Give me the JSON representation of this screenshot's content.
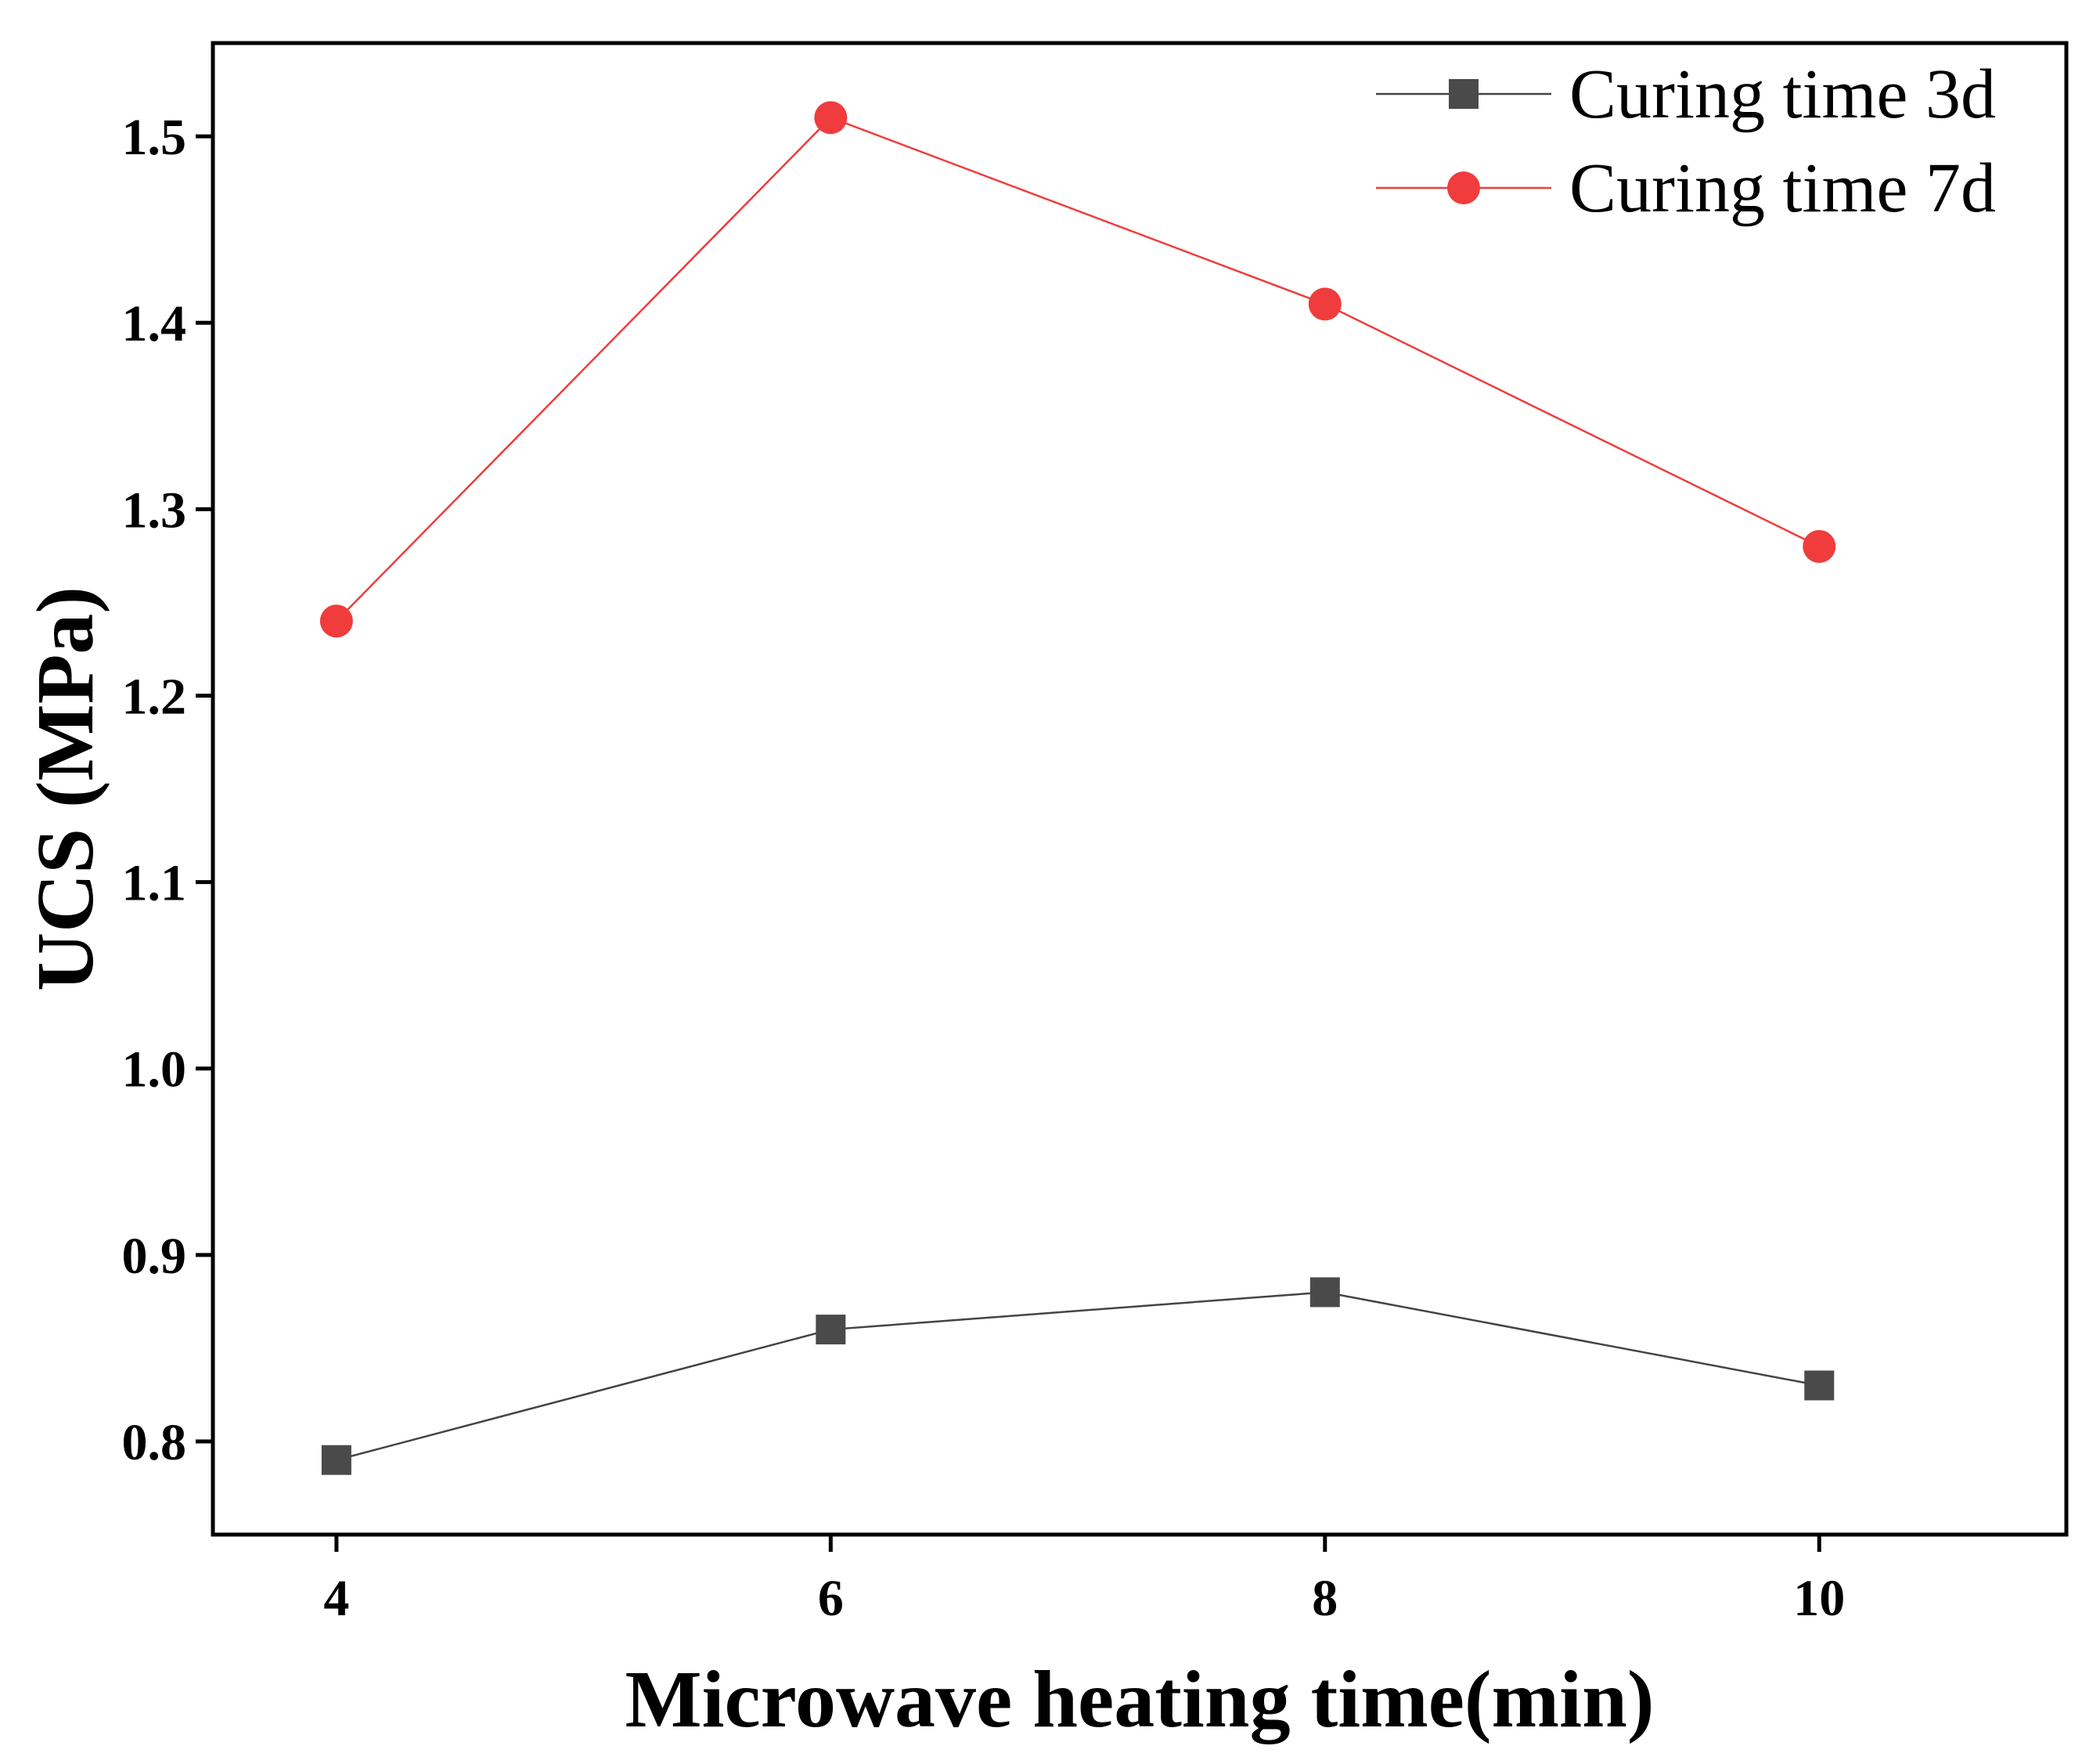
{
  "chart_data": {
    "type": "line",
    "title": "",
    "xlabel": "Microwave heating time(min)",
    "ylabel": "UCS (MPa)",
    "x": [
      4,
      6,
      8,
      10
    ],
    "xlim": [
      3.5,
      11.0
    ],
    "ylim": [
      0.75,
      1.55
    ],
    "xticks": [
      4,
      6,
      8,
      10
    ],
    "xtick_labels": [
      "4",
      "6",
      "8",
      "10"
    ],
    "yticks": [
      0.8,
      0.9,
      1.0,
      1.1,
      1.2,
      1.3,
      1.4,
      1.5
    ],
    "ytick_labels": [
      "0.8",
      "0.9",
      "1.0",
      "1.1",
      "1.2",
      "1.3",
      "1.4",
      "1.5"
    ],
    "grid": false,
    "legend_position": "top-right",
    "series": [
      {
        "name": "Curing time 3d",
        "marker": "square",
        "color": "#4a4a4a",
        "line_color": "#444444",
        "values": [
          0.79,
          0.86,
          0.88,
          0.83
        ]
      },
      {
        "name": "Curing time 7d",
        "marker": "circle",
        "color": "#f03c3c",
        "line_color": "#f03c3c",
        "values": [
          1.24,
          1.51,
          1.41,
          1.28
        ]
      }
    ]
  }
}
